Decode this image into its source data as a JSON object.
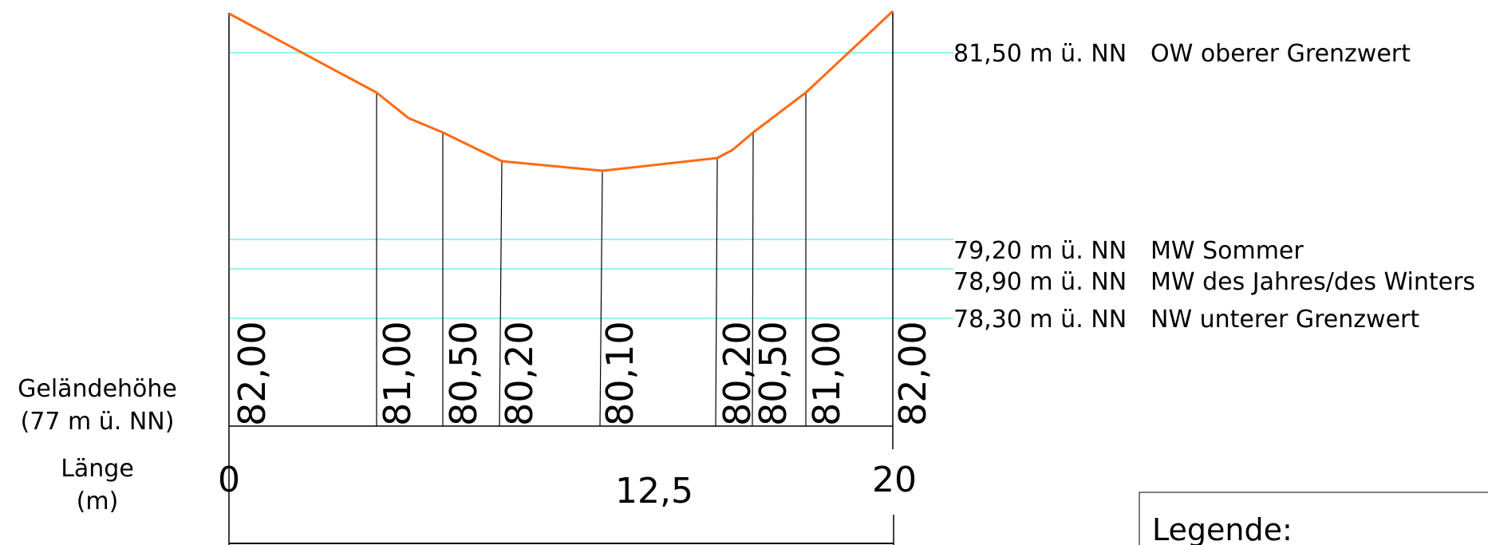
{
  "diagram": {
    "water_levels": [
      {
        "elevation": 81.5,
        "label": "81,50 m ü. NN",
        "desc": "OW oberer Grenzwert"
      },
      {
        "elevation": 79.2,
        "label": "79,20 m ü. NN",
        "desc": "MW Sommer"
      },
      {
        "elevation": 78.9,
        "label": "78,90 m ü. NN",
        "desc": "MW des Jahres/des Winters"
      },
      {
        "elevation": 78.3,
        "label": "78,30 m ü. NN",
        "desc": "NW unterer Grenzwert"
      }
    ],
    "terrain_label_line1": "Geländehöhe",
    "terrain_label_line2": "(77 m ü. NN)",
    "length_label_line1": "Länge",
    "length_label_line2": "(m)",
    "x_ticks": [
      "0",
      "12,5",
      "20"
    ],
    "profile_points": [
      {
        "elev_label": "82,00"
      },
      {
        "elev_label": "81,00"
      },
      {
        "elev_label": "80,50"
      },
      {
        "elev_label": "80,20"
      },
      {
        "elev_label": "80,10"
      },
      {
        "elev_label": "80,20"
      },
      {
        "elev_label": "80,50"
      },
      {
        "elev_label": "81,00"
      },
      {
        "elev_label": "82,00"
      }
    ],
    "legend_title": "Legende:",
    "colors": {
      "profile": "#ff6a13",
      "water": "#8ff5f2",
      "lines": "#000000"
    }
  }
}
